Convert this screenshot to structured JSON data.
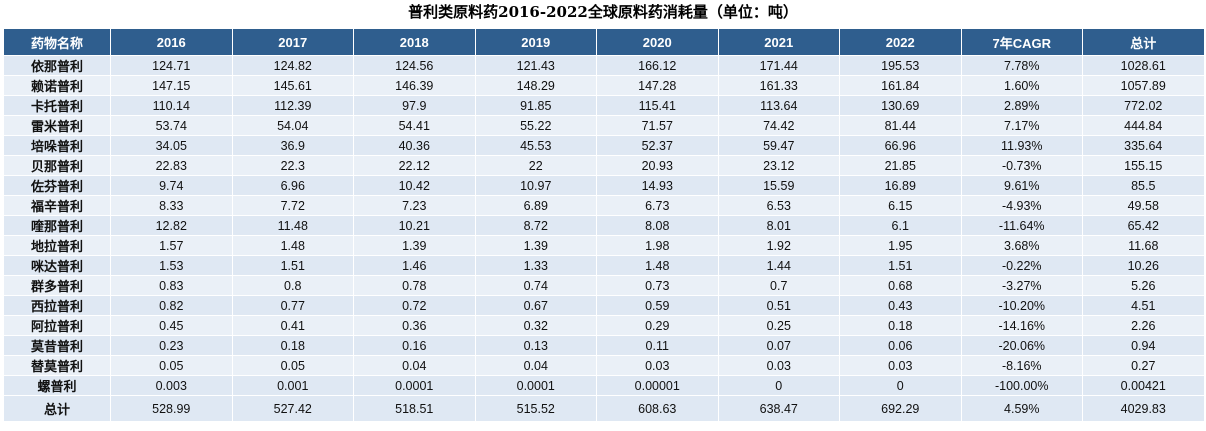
{
  "title": "普利类原料药2016-2022全球原料药消耗量（单位：吨）",
  "table": {
    "header": [
      "药物名称",
      "2016",
      "2017",
      "2018",
      "2019",
      "2020",
      "2021",
      "2022",
      "7年CAGR",
      "总计"
    ],
    "rows": [
      [
        "依那普利",
        "124.71",
        "124.82",
        "124.56",
        "121.43",
        "166.12",
        "171.44",
        "195.53",
        "7.78%",
        "1028.61"
      ],
      [
        "赖诺普利",
        "147.15",
        "145.61",
        "146.39",
        "148.29",
        "147.28",
        "161.33",
        "161.84",
        "1.60%",
        "1057.89"
      ],
      [
        "卡托普利",
        "110.14",
        "112.39",
        "97.9",
        "91.85",
        "115.41",
        "113.64",
        "130.69",
        "2.89%",
        "772.02"
      ],
      [
        "雷米普利",
        "53.74",
        "54.04",
        "54.41",
        "55.22",
        "71.57",
        "74.42",
        "81.44",
        "7.17%",
        "444.84"
      ],
      [
        "培哚普利",
        "34.05",
        "36.9",
        "40.36",
        "45.53",
        "52.37",
        "59.47",
        "66.96",
        "11.93%",
        "335.64"
      ],
      [
        "贝那普利",
        "22.83",
        "22.3",
        "22.12",
        "22",
        "20.93",
        "23.12",
        "21.85",
        "-0.73%",
        "155.15"
      ],
      [
        "佐芬普利",
        "9.74",
        "6.96",
        "10.42",
        "10.97",
        "14.93",
        "15.59",
        "16.89",
        "9.61%",
        "85.5"
      ],
      [
        "福辛普利",
        "8.33",
        "7.72",
        "7.23",
        "6.89",
        "6.73",
        "6.53",
        "6.15",
        "-4.93%",
        "49.58"
      ],
      [
        "喹那普利",
        "12.82",
        "11.48",
        "10.21",
        "8.72",
        "8.08",
        "8.01",
        "6.1",
        "-11.64%",
        "65.42"
      ],
      [
        "地拉普利",
        "1.57",
        "1.48",
        "1.39",
        "1.39",
        "1.98",
        "1.92",
        "1.95",
        "3.68%",
        "11.68"
      ],
      [
        "咪达普利",
        "1.53",
        "1.51",
        "1.46",
        "1.33",
        "1.48",
        "1.44",
        "1.51",
        "-0.22%",
        "10.26"
      ],
      [
        "群多普利",
        "0.83",
        "0.8",
        "0.78",
        "0.74",
        "0.73",
        "0.7",
        "0.68",
        "-3.27%",
        "5.26"
      ],
      [
        "西拉普利",
        "0.82",
        "0.77",
        "0.72",
        "0.67",
        "0.59",
        "0.51",
        "0.43",
        "-10.20%",
        "4.51"
      ],
      [
        "阿拉普利",
        "0.45",
        "0.41",
        "0.36",
        "0.32",
        "0.29",
        "0.25",
        "0.18",
        "-14.16%",
        "2.26"
      ],
      [
        "莫昔普利",
        "0.23",
        "0.18",
        "0.16",
        "0.13",
        "0.11",
        "0.07",
        "0.06",
        "-20.06%",
        "0.94"
      ],
      [
        "替莫普利",
        "0.05",
        "0.05",
        "0.04",
        "0.04",
        "0.03",
        "0.03",
        "0.03",
        "-8.16%",
        "0.27"
      ],
      [
        "螺普利",
        "0.003",
        "0.001",
        "0.0001",
        "0.0001",
        "0.00001",
        "0",
        "0",
        "-100.00%",
        "0.00421"
      ],
      [
        "总计",
        "528.99",
        "527.42",
        "518.51",
        "515.52",
        "608.63",
        "638.47",
        "692.29",
        "4.59%",
        "4029.83"
      ]
    ]
  }
}
